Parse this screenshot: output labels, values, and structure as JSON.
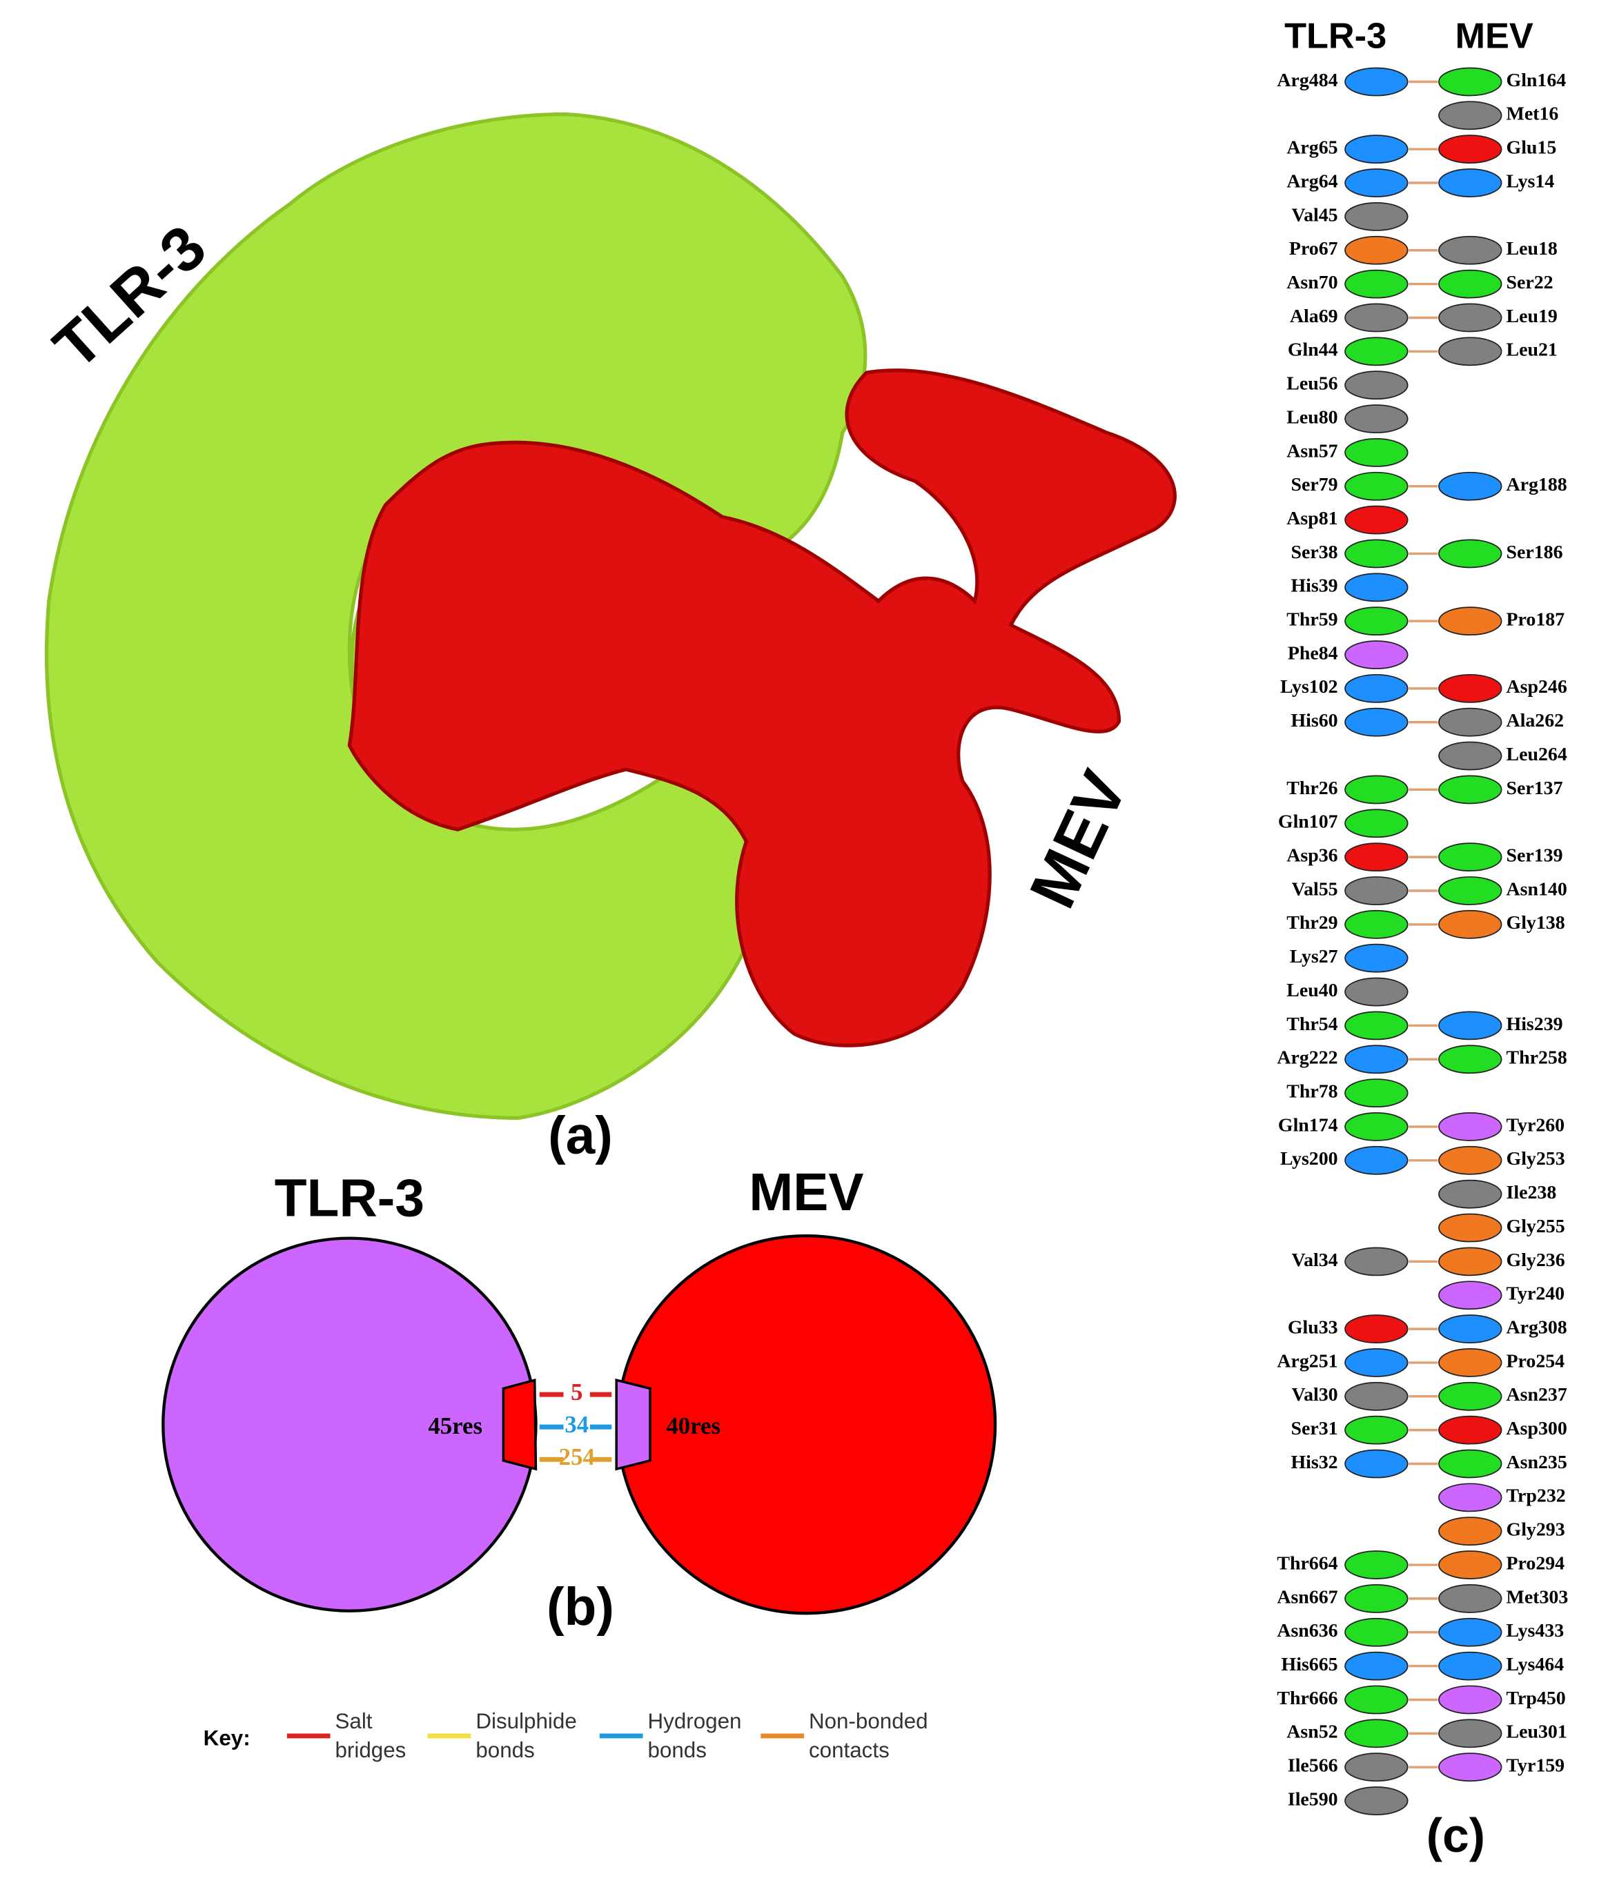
{
  "panel_a": {
    "receptor_label": "TLR-3",
    "vaccine_label": "MEV",
    "caption": "(a)"
  },
  "panel_b": {
    "receptor": {
      "name": "TLR-3",
      "residues": "45res"
    },
    "vaccine": {
      "name": "MEV",
      "residues": "40res"
    },
    "counts": [
      {
        "label": "5",
        "color": "#dd2222"
      },
      {
        "label": "34",
        "color": "#1e9be0"
      },
      {
        "label": "254",
        "color": "#e0a030"
      }
    ],
    "caption": "(b)",
    "key": {
      "title": "Key:",
      "items": [
        {
          "lines": [
            "Salt",
            "bridges"
          ],
          "color": "#dd2222"
        },
        {
          "lines": [
            "Disulphide",
            "bonds"
          ],
          "color": "#f0e040"
        },
        {
          "lines": [
            "Hydrogen",
            "bonds"
          ],
          "color": "#1e9be0"
        },
        {
          "lines": [
            "Non-bonded",
            "contacts"
          ],
          "color": "#e88a2a"
        }
      ]
    }
  },
  "panel_c": {
    "left_header": "TLR-3",
    "right_header": "MEV",
    "caption": "(c)",
    "rows": [
      {
        "tlr3": {
          "name": "Arg484",
          "color": "#1e8fff"
        },
        "mev": {
          "name": "Gln164",
          "color": "#22dd22"
        }
      },
      {
        "tlr3": null,
        "mev": {
          "name": "Met16",
          "color": "#808080"
        }
      },
      {
        "tlr3": {
          "name": "Arg65",
          "color": "#1e8fff"
        },
        "mev": {
          "name": "Glu15",
          "color": "#ee1111"
        }
      },
      {
        "tlr3": {
          "name": "Arg64",
          "color": "#1e8fff"
        },
        "mev": {
          "name": "Lys14",
          "color": "#1e8fff"
        }
      },
      {
        "tlr3": {
          "name": "Val45",
          "color": "#808080"
        },
        "mev": null
      },
      {
        "tlr3": {
          "name": "Pro67",
          "color": "#f07820"
        },
        "mev": {
          "name": "Leu18",
          "color": "#808080"
        }
      },
      {
        "tlr3": {
          "name": "Asn70",
          "color": "#22dd22"
        },
        "mev": {
          "name": "Ser22",
          "color": "#22dd22"
        }
      },
      {
        "tlr3": {
          "name": "Ala69",
          "color": "#808080"
        },
        "mev": {
          "name": "Leu19",
          "color": "#808080"
        }
      },
      {
        "tlr3": {
          "name": "Gln44",
          "color": "#22dd22"
        },
        "mev": {
          "name": "Leu21",
          "color": "#808080"
        }
      },
      {
        "tlr3": {
          "name": "Leu56",
          "color": "#808080"
        },
        "mev": null
      },
      {
        "tlr3": {
          "name": "Leu80",
          "color": "#808080"
        },
        "mev": null
      },
      {
        "tlr3": {
          "name": "Asn57",
          "color": "#22dd22"
        },
        "mev": null
      },
      {
        "tlr3": {
          "name": "Ser79",
          "color": "#22dd22"
        },
        "mev": {
          "name": "Arg188",
          "color": "#1e8fff"
        }
      },
      {
        "tlr3": {
          "name": "Asp81",
          "color": "#ee1111"
        },
        "mev": null
      },
      {
        "tlr3": {
          "name": "Ser38",
          "color": "#22dd22"
        },
        "mev": {
          "name": "Ser186",
          "color": "#22dd22"
        }
      },
      {
        "tlr3": {
          "name": "His39",
          "color": "#1e8fff"
        },
        "mev": null
      },
      {
        "tlr3": {
          "name": "Thr59",
          "color": "#22dd22"
        },
        "mev": {
          "name": "Pro187",
          "color": "#f07820"
        }
      },
      {
        "tlr3": {
          "name": "Phe84",
          "color": "#cc66ff"
        },
        "mev": null
      },
      {
        "tlr3": {
          "name": "Lys102",
          "color": "#1e8fff"
        },
        "mev": {
          "name": "Asp246",
          "color": "#ee1111"
        }
      },
      {
        "tlr3": {
          "name": "His60",
          "color": "#1e8fff"
        },
        "mev": {
          "name": "Ala262",
          "color": "#808080"
        }
      },
      {
        "tlr3": null,
        "mev": {
          "name": "Leu264",
          "color": "#808080"
        }
      },
      {
        "tlr3": {
          "name": "Thr26",
          "color": "#22dd22"
        },
        "mev": {
          "name": "Ser137",
          "color": "#22dd22"
        }
      },
      {
        "tlr3": {
          "name": "Gln107",
          "color": "#22dd22"
        },
        "mev": null
      },
      {
        "tlr3": {
          "name": "Asp36",
          "color": "#ee1111"
        },
        "mev": {
          "name": "Ser139",
          "color": "#22dd22"
        }
      },
      {
        "tlr3": {
          "name": "Val55",
          "color": "#808080"
        },
        "mev": {
          "name": "Asn140",
          "color": "#22dd22"
        }
      },
      {
        "tlr3": {
          "name": "Thr29",
          "color": "#22dd22"
        },
        "mev": {
          "name": "Gly138",
          "color": "#f07820"
        }
      },
      {
        "tlr3": {
          "name": "Lys27",
          "color": "#1e8fff"
        },
        "mev": null
      },
      {
        "tlr3": {
          "name": "Leu40",
          "color": "#808080"
        },
        "mev": null
      },
      {
        "tlr3": {
          "name": "Thr54",
          "color": "#22dd22"
        },
        "mev": {
          "name": "His239",
          "color": "#1e8fff"
        }
      },
      {
        "tlr3": {
          "name": "Arg222",
          "color": "#1e8fff"
        },
        "mev": {
          "name": "Thr258",
          "color": "#22dd22"
        }
      },
      {
        "tlr3": {
          "name": "Thr78",
          "color": "#22dd22"
        },
        "mev": null
      },
      {
        "tlr3": {
          "name": "Gln174",
          "color": "#22dd22"
        },
        "mev": {
          "name": "Tyr260",
          "color": "#cc66ff"
        }
      },
      {
        "tlr3": {
          "name": "Lys200",
          "color": "#1e8fff"
        },
        "mev": {
          "name": "Gly253",
          "color": "#f07820"
        }
      },
      {
        "tlr3": null,
        "mev": {
          "name": "Ile238",
          "color": "#808080"
        }
      },
      {
        "tlr3": null,
        "mev": {
          "name": "Gly255",
          "color": "#f07820"
        }
      },
      {
        "tlr3": {
          "name": "Val34",
          "color": "#808080"
        },
        "mev": {
          "name": "Gly236",
          "color": "#f07820"
        }
      },
      {
        "tlr3": null,
        "mev": {
          "name": "Tyr240",
          "color": "#cc66ff"
        }
      },
      {
        "tlr3": {
          "name": "Glu33",
          "color": "#ee1111"
        },
        "mev": {
          "name": "Arg308",
          "color": "#1e8fff"
        }
      },
      {
        "tlr3": {
          "name": "Arg251",
          "color": "#1e8fff"
        },
        "mev": {
          "name": "Pro254",
          "color": "#f07820"
        }
      },
      {
        "tlr3": {
          "name": "Val30",
          "color": "#808080"
        },
        "mev": {
          "name": "Asn237",
          "color": "#22dd22"
        }
      },
      {
        "tlr3": {
          "name": "Ser31",
          "color": "#22dd22"
        },
        "mev": {
          "name": "Asp300",
          "color": "#ee1111"
        }
      },
      {
        "tlr3": {
          "name": "His32",
          "color": "#1e8fff"
        },
        "mev": {
          "name": "Asn235",
          "color": "#22dd22"
        }
      },
      {
        "tlr3": null,
        "mev": {
          "name": "Trp232",
          "color": "#cc66ff"
        }
      },
      {
        "tlr3": null,
        "mev": {
          "name": "Gly293",
          "color": "#f07820"
        }
      },
      {
        "tlr3": {
          "name": "Thr664",
          "color": "#22dd22"
        },
        "mev": {
          "name": "Pro294",
          "color": "#f07820"
        }
      },
      {
        "tlr3": {
          "name": "Asn667",
          "color": "#22dd22"
        },
        "mev": {
          "name": "Met303",
          "color": "#808080"
        }
      },
      {
        "tlr3": {
          "name": "Asn636",
          "color": "#22dd22"
        },
        "mev": {
          "name": "Lys433",
          "color": "#1e8fff"
        }
      },
      {
        "tlr3": {
          "name": "His665",
          "color": "#1e8fff"
        },
        "mev": {
          "name": "Lys464",
          "color": "#1e8fff"
        }
      },
      {
        "tlr3": {
          "name": "Thr666",
          "color": "#22dd22"
        },
        "mev": {
          "name": "Trp450",
          "color": "#cc66ff"
        }
      },
      {
        "tlr3": {
          "name": "Asn52",
          "color": "#22dd22"
        },
        "mev": {
          "name": "Leu301",
          "color": "#808080"
        }
      },
      {
        "tlr3": {
          "name": "Ile566",
          "color": "#808080"
        },
        "mev": {
          "name": "Tyr159",
          "color": "#cc66ff"
        }
      },
      {
        "tlr3": {
          "name": "Ile590",
          "color": "#808080"
        },
        "mev": null
      }
    ]
  }
}
